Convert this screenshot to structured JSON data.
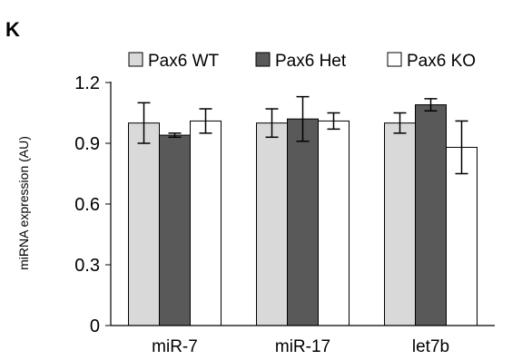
{
  "panel_label": "K",
  "chart_data": {
    "type": "bar",
    "title": "",
    "xlabel": "",
    "ylabel": "miRNA expression (AU)",
    "ylim": [
      0,
      1.2
    ],
    "yticks": [
      "0",
      "0.3",
      "0.6",
      "0.9",
      "1.2"
    ],
    "grid": false,
    "legend_position": "top",
    "categories": [
      "miR-7",
      "miR-17",
      "let7b"
    ],
    "series": [
      {
        "name": "Pax6 WT",
        "color": "#d9d9d9",
        "values": [
          1.0,
          1.0,
          1.0
        ],
        "errors": [
          0.1,
          0.07,
          0.05
        ]
      },
      {
        "name": "Pax6 Het",
        "color": "#595959",
        "values": [
          0.94,
          1.02,
          1.09
        ],
        "errors": [
          0.01,
          0.11,
          0.03
        ]
      },
      {
        "name": "Pax6 KO",
        "color": "#ffffff",
        "values": [
          1.01,
          1.01,
          0.88
        ],
        "errors": [
          0.06,
          0.04,
          0.13
        ]
      }
    ]
  }
}
